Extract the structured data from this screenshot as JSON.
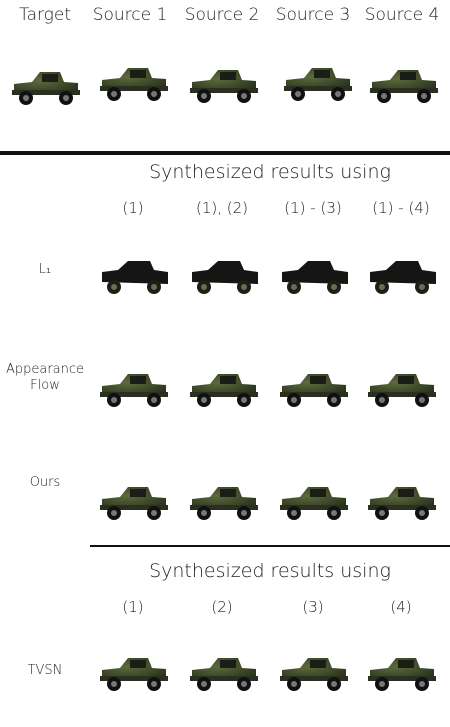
{
  "header": {
    "columns": [
      "Target",
      "Source 1",
      "Source 2",
      "Source 3",
      "Source 4"
    ]
  },
  "section1": {
    "title": "Synthesized results using",
    "columns": [
      "(1)",
      "(1), (2)",
      "(1) - (3)",
      "(1) - (4)"
    ],
    "rows": [
      "L₁",
      "Appearance Flow",
      "Ours"
    ]
  },
  "section2": {
    "title": "Synthesized results using",
    "columns": [
      "(1)",
      "(2)",
      "(3)",
      "(4)"
    ],
    "rows": [
      "TVSN"
    ]
  }
}
